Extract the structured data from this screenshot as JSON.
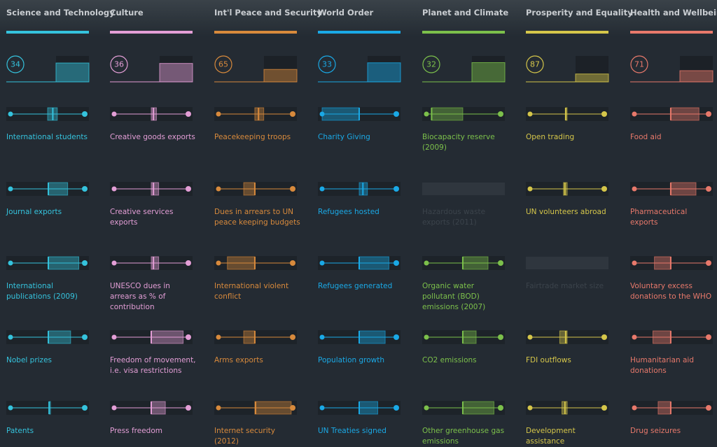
{
  "columns": [
    {
      "title": "Science and Technology",
      "color": "#35c3dd",
      "score": 34,
      "items": [
        {
          "label": "International students"
        },
        {
          "label": "Journal exports"
        },
        {
          "label": "International publications (2009)"
        },
        {
          "label": "Nobel prizes"
        },
        {
          "label": "Patents"
        }
      ]
    },
    {
      "title": "Culture",
      "color": "#e39ed6",
      "score": 36,
      "items": [
        {
          "label": "Creative goods exports"
        },
        {
          "label": "Creative services exports"
        },
        {
          "label": "UNESCO dues in arrears as % of contribution"
        },
        {
          "label": "Freedom of movement, i.e. visa restrictions"
        },
        {
          "label": "Press freedom"
        }
      ]
    },
    {
      "title": "Int'l Peace and Security",
      "color": "#d88a3c",
      "score": 65,
      "items": [
        {
          "label": "Peacekeeping troops"
        },
        {
          "label": "Dues in arrears to UN peace keeping budgets"
        },
        {
          "label": "International violent conflict"
        },
        {
          "label": "Arms exports"
        },
        {
          "label": "Internet security (2012)"
        }
      ]
    },
    {
      "title": "World Order",
      "color": "#1aa9e6",
      "score": 33,
      "items": [
        {
          "label": "Charity Giving"
        },
        {
          "label": "Refugees hosted"
        },
        {
          "label": "Refugees generated"
        },
        {
          "label": "Population growth"
        },
        {
          "label": "UN Treaties signed"
        }
      ]
    },
    {
      "title": "Planet and Climate",
      "color": "#7cc04b",
      "score": 32,
      "items": [
        {
          "label": "Biocapacity reserve (2009)"
        },
        {
          "label": "Hazardous waste exports (2011)",
          "disabled": true
        },
        {
          "label": "Organic water pollutant (BOD) emissions (2007)"
        },
        {
          "label": "CO2 emissions"
        },
        {
          "label": "Other greenhouse gas emissions"
        }
      ]
    },
    {
      "title": "Prosperity and Equality",
      "color": "#d5c64a",
      "score": 87,
      "items": [
        {
          "label": "Open trading"
        },
        {
          "label": "UN volunteers abroad"
        },
        {
          "label": "Fairtrade market size",
          "disabled": true
        },
        {
          "label": "FDI outflows"
        },
        {
          "label": "Development assistance"
        }
      ]
    },
    {
      "title": "Health and Wellbeing",
      "color": "#e8796b",
      "score": 71,
      "items": [
        {
          "label": "Food aid"
        },
        {
          "label": "Pharmaceutical exports"
        },
        {
          "label": "Voluntary excess donations to the WHO"
        },
        {
          "label": "Humanitarian aid donations"
        },
        {
          "label": "Drug seizures"
        }
      ]
    }
  ]
}
